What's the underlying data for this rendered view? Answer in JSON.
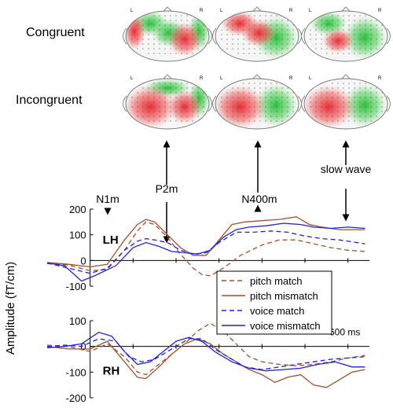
{
  "row_labels": [
    "Congruent",
    "Incongruent"
  ],
  "head_labels": {
    "left": "L",
    "right": "R"
  },
  "topomaps": [
    {
      "row": "Congruent",
      "component": "N1m",
      "red": [
        "left-edge",
        "right-temporal"
      ],
      "green": [
        "left-front",
        "right-edge",
        "center"
      ]
    },
    {
      "row": "Congruent",
      "component": "N400m",
      "red": [
        "left-front",
        "center"
      ],
      "green": [
        "right"
      ]
    },
    {
      "row": "Congruent",
      "component": "slow wave",
      "red": [
        "left-center"
      ],
      "green": [
        "left-front",
        "right"
      ]
    },
    {
      "row": "Incongruent",
      "component": "N1m",
      "red": [
        "left",
        "right-temporal"
      ],
      "green": [
        "front",
        "right-edge"
      ]
    },
    {
      "row": "Incongruent",
      "component": "N400m",
      "red": [
        "left"
      ],
      "green": [
        "right"
      ]
    },
    {
      "row": "Incongruent",
      "component": "slow wave",
      "red": [
        "left"
      ],
      "green": [
        "right"
      ]
    }
  ],
  "colors": {
    "red": "#e8202a",
    "green": "#2ec23a",
    "pitch": "#a0522d",
    "voice": "#2222dd"
  },
  "markers": [
    {
      "label": "N1m",
      "direction": "down",
      "time_ms": 155
    },
    {
      "label": "P2m",
      "direction": "down",
      "time_ms": 220,
      "up_arrow": true
    },
    {
      "label": "N400m",
      "direction": "up",
      "time_ms": 400
    },
    {
      "label": "slow wave",
      "direction": "down",
      "time_ms": 560,
      "up_arrow": true
    }
  ],
  "ylabel": "Amplitude (fT/cm)",
  "time_label": "600 ms",
  "chart_data": [
    {
      "type": "line",
      "panel": "LH",
      "xlim": [
        -100,
        650
      ],
      "ylim": [
        -100,
        200
      ],
      "yticks": [
        "200",
        "100",
        "0",
        "-100"
      ],
      "series": [
        {
          "name": "pitch match",
          "style": "dashed",
          "color": "#a0522d",
          "points": [
            [
              -100,
              -12
            ],
            [
              -50,
              -18
            ],
            [
              0,
              -40
            ],
            [
              40,
              -35
            ],
            [
              80,
              40
            ],
            [
              110,
              115
            ],
            [
              130,
              150
            ],
            [
              150,
              140
            ],
            [
              180,
              90
            ],
            [
              210,
              25
            ],
            [
              240,
              -30
            ],
            [
              260,
              -55
            ],
            [
              280,
              -60
            ],
            [
              310,
              -30
            ],
            [
              350,
              20
            ],
            [
              400,
              60
            ],
            [
              440,
              80
            ],
            [
              480,
              80
            ],
            [
              520,
              65
            ],
            [
              560,
              50
            ],
            [
              600,
              40
            ],
            [
              640,
              35
            ]
          ]
        },
        {
          "name": "pitch mismatch",
          "style": "solid",
          "color": "#a0522d",
          "points": [
            [
              -100,
              -8
            ],
            [
              -50,
              -15
            ],
            [
              0,
              -25
            ],
            [
              40,
              -15
            ],
            [
              80,
              80
            ],
            [
              110,
              140
            ],
            [
              130,
              160
            ],
            [
              150,
              150
            ],
            [
              180,
              100
            ],
            [
              210,
              50
            ],
            [
              240,
              20
            ],
            [
              270,
              20
            ],
            [
              300,
              80
            ],
            [
              330,
              140
            ],
            [
              360,
              150
            ],
            [
              400,
              155
            ],
            [
              440,
              160
            ],
            [
              480,
              170
            ],
            [
              510,
              140
            ],
            [
              540,
              130
            ],
            [
              580,
              120
            ],
            [
              610,
              120
            ],
            [
              640,
              120
            ]
          ]
        },
        {
          "name": "voice match",
          "style": "dashed",
          "color": "#2222dd",
          "points": [
            [
              -100,
              -10
            ],
            [
              -50,
              -30
            ],
            [
              0,
              -50
            ],
            [
              40,
              -30
            ],
            [
              80,
              40
            ],
            [
              110,
              75
            ],
            [
              130,
              85
            ],
            [
              150,
              80
            ],
            [
              180,
              70
            ],
            [
              210,
              40
            ],
            [
              240,
              25
            ],
            [
              270,
              30
            ],
            [
              300,
              70
            ],
            [
              340,
              110
            ],
            [
              380,
              110
            ],
            [
              420,
              115
            ],
            [
              460,
              110
            ],
            [
              500,
              95
            ],
            [
              540,
              85
            ],
            [
              580,
              80
            ],
            [
              620,
              70
            ],
            [
              640,
              65
            ]
          ]
        },
        {
          "name": "voice mismatch",
          "style": "solid",
          "color": "#2222dd",
          "points": [
            [
              -100,
              -10
            ],
            [
              -60,
              -20
            ],
            [
              -20,
              -80
            ],
            [
              10,
              -60
            ],
            [
              60,
              -20
            ],
            [
              100,
              50
            ],
            [
              130,
              70
            ],
            [
              160,
              55
            ],
            [
              190,
              35
            ],
            [
              220,
              30
            ],
            [
              250,
              25
            ],
            [
              280,
              40
            ],
            [
              310,
              90
            ],
            [
              340,
              120
            ],
            [
              370,
              130
            ],
            [
              410,
              135
            ],
            [
              450,
              145
            ],
            [
              490,
              140
            ],
            [
              520,
              130
            ],
            [
              560,
              125
            ],
            [
              600,
              130
            ],
            [
              640,
              125
            ]
          ]
        }
      ]
    },
    {
      "type": "line",
      "panel": "RH",
      "xlim": [
        -100,
        650
      ],
      "ylim": [
        -200,
        100
      ],
      "yticks": [
        "100",
        "0",
        "-100",
        "-200"
      ],
      "series": [
        {
          "name": "pitch match",
          "style": "dashed",
          "color": "#a0522d",
          "points": [
            [
              -100,
              5
            ],
            [
              -50,
              0
            ],
            [
              0,
              -20
            ],
            [
              40,
              10
            ],
            [
              80,
              -40
            ],
            [
              110,
              -100
            ],
            [
              130,
              -110
            ],
            [
              160,
              -70
            ],
            [
              190,
              -30
            ],
            [
              220,
              10
            ],
            [
              250,
              60
            ],
            [
              280,
              90
            ],
            [
              310,
              60
            ],
            [
              340,
              10
            ],
            [
              370,
              -40
            ],
            [
              400,
              -60
            ],
            [
              440,
              -70
            ],
            [
              480,
              -75
            ],
            [
              520,
              -70
            ],
            [
              560,
              -60
            ],
            [
              600,
              -45
            ],
            [
              640,
              -35
            ]
          ]
        },
        {
          "name": "pitch mismatch",
          "style": "solid",
          "color": "#a0522d",
          "points": [
            [
              -100,
              0
            ],
            [
              -50,
              -10
            ],
            [
              0,
              -10
            ],
            [
              40,
              20
            ],
            [
              80,
              -60
            ],
            [
              110,
              -120
            ],
            [
              130,
              -125
            ],
            [
              160,
              -80
            ],
            [
              190,
              -30
            ],
            [
              220,
              10
            ],
            [
              250,
              30
            ],
            [
              280,
              10
            ],
            [
              310,
              -30
            ],
            [
              340,
              -60
            ],
            [
              370,
              -90
            ],
            [
              400,
              -110
            ],
            [
              430,
              -140
            ],
            [
              460,
              -120
            ],
            [
              490,
              -110
            ],
            [
              520,
              -150
            ],
            [
              550,
              -160
            ],
            [
              580,
              -130
            ],
            [
              610,
              -100
            ],
            [
              640,
              -90
            ]
          ]
        },
        {
          "name": "voice match",
          "style": "dashed",
          "color": "#2222dd",
          "points": [
            [
              -100,
              0
            ],
            [
              -60,
              5
            ],
            [
              -20,
              0
            ],
            [
              20,
              30
            ],
            [
              60,
              20
            ],
            [
              90,
              -40
            ],
            [
              120,
              -60
            ],
            [
              150,
              -50
            ],
            [
              190,
              -10
            ],
            [
              230,
              30
            ],
            [
              260,
              30
            ],
            [
              290,
              -10
            ],
            [
              320,
              -40
            ],
            [
              360,
              -80
            ],
            [
              400,
              -90
            ],
            [
              440,
              -80
            ],
            [
              480,
              -70
            ],
            [
              520,
              -60
            ],
            [
              560,
              -50
            ],
            [
              600,
              -45
            ],
            [
              640,
              -40
            ]
          ]
        },
        {
          "name": "voice mismatch",
          "style": "solid",
          "color": "#2222dd",
          "points": [
            [
              -100,
              -5
            ],
            [
              -60,
              0
            ],
            [
              -20,
              10
            ],
            [
              20,
              55
            ],
            [
              50,
              40
            ],
            [
              80,
              -20
            ],
            [
              110,
              -70
            ],
            [
              140,
              -60
            ],
            [
              170,
              -20
            ],
            [
              200,
              20
            ],
            [
              230,
              35
            ],
            [
              260,
              20
            ],
            [
              290,
              -20
            ],
            [
              330,
              -60
            ],
            [
              370,
              -85
            ],
            [
              410,
              -95
            ],
            [
              450,
              -90
            ],
            [
              490,
              -85
            ],
            [
              530,
              -70
            ],
            [
              570,
              -60
            ],
            [
              610,
              -80
            ],
            [
              640,
              -80
            ]
          ]
        }
      ]
    }
  ]
}
